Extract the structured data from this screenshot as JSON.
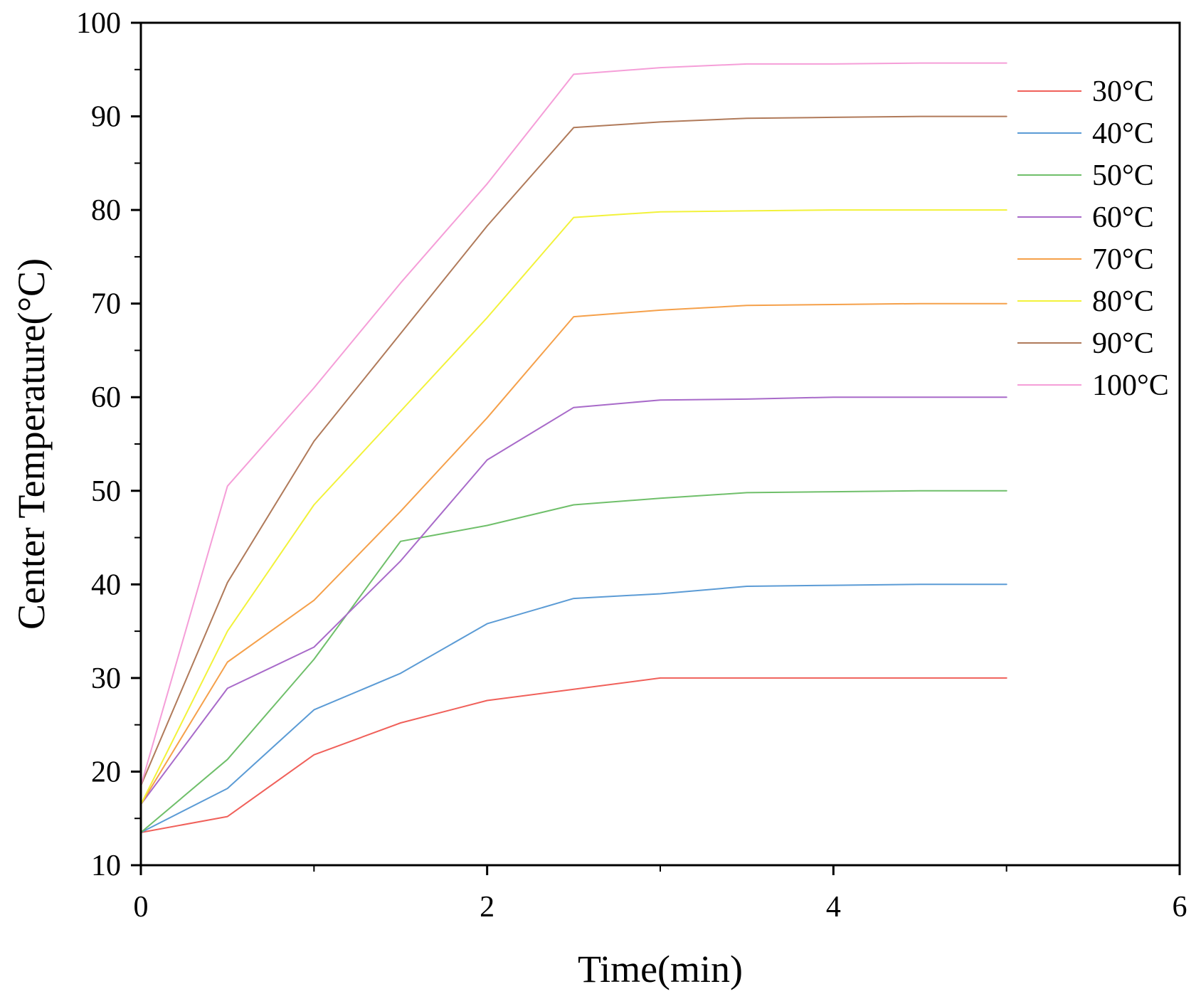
{
  "chart_data": {
    "type": "line",
    "title": "",
    "xlabel": "Time(min)",
    "ylabel": "Center Temperature(°C)",
    "xlim": [
      0,
      6
    ],
    "ylim": [
      10,
      100
    ],
    "xticks": [
      0,
      2,
      4,
      6
    ],
    "yticks": [
      10,
      20,
      30,
      40,
      50,
      60,
      70,
      80,
      90,
      100
    ],
    "grid": false,
    "legend_position": "right",
    "x": [
      0,
      0.5,
      1,
      1.5,
      2,
      2.5,
      3,
      3.5,
      4,
      4.5,
      5
    ],
    "series": [
      {
        "name": "30°C",
        "color": "#f0605a",
        "values": [
          13.5,
          15.2,
          21.8,
          25.2,
          27.6,
          28.8,
          30.0,
          30.0,
          30.0,
          30.0,
          30.0
        ]
      },
      {
        "name": "40°C",
        "color": "#5b9bd5",
        "values": [
          13.5,
          18.2,
          26.6,
          30.5,
          35.8,
          38.5,
          39.0,
          39.8,
          39.9,
          40.0,
          40.0
        ]
      },
      {
        "name": "50°C",
        "color": "#6fbf6a",
        "values": [
          13.5,
          21.3,
          32.0,
          44.6,
          46.3,
          48.5,
          49.2,
          49.8,
          49.9,
          50.0,
          50.0
        ]
      },
      {
        "name": "60°C",
        "color": "#a86ac9",
        "values": [
          16.5,
          28.9,
          33.3,
          42.5,
          53.3,
          58.9,
          59.7,
          59.8,
          60.0,
          60.0,
          60.0
        ]
      },
      {
        "name": "70°C",
        "color": "#f5a04a",
        "values": [
          16.5,
          31.7,
          38.3,
          47.8,
          57.8,
          68.6,
          69.3,
          69.8,
          69.9,
          70.0,
          70.0
        ]
      },
      {
        "name": "80°C",
        "color": "#f2f23a",
        "values": [
          16.5,
          35.0,
          48.5,
          58.5,
          68.5,
          79.2,
          79.8,
          79.9,
          80.0,
          80.0,
          80.0
        ]
      },
      {
        "name": "90°C",
        "color": "#b07a5a",
        "values": [
          18.5,
          40.2,
          55.3,
          66.8,
          78.3,
          88.8,
          89.4,
          89.8,
          89.9,
          90.0,
          90.0
        ]
      },
      {
        "name": "100°C",
        "color": "#f59ed8",
        "values": [
          18.5,
          50.5,
          61.0,
          72.2,
          82.8,
          94.5,
          95.2,
          95.6,
          95.6,
          95.7,
          95.7
        ]
      }
    ]
  }
}
